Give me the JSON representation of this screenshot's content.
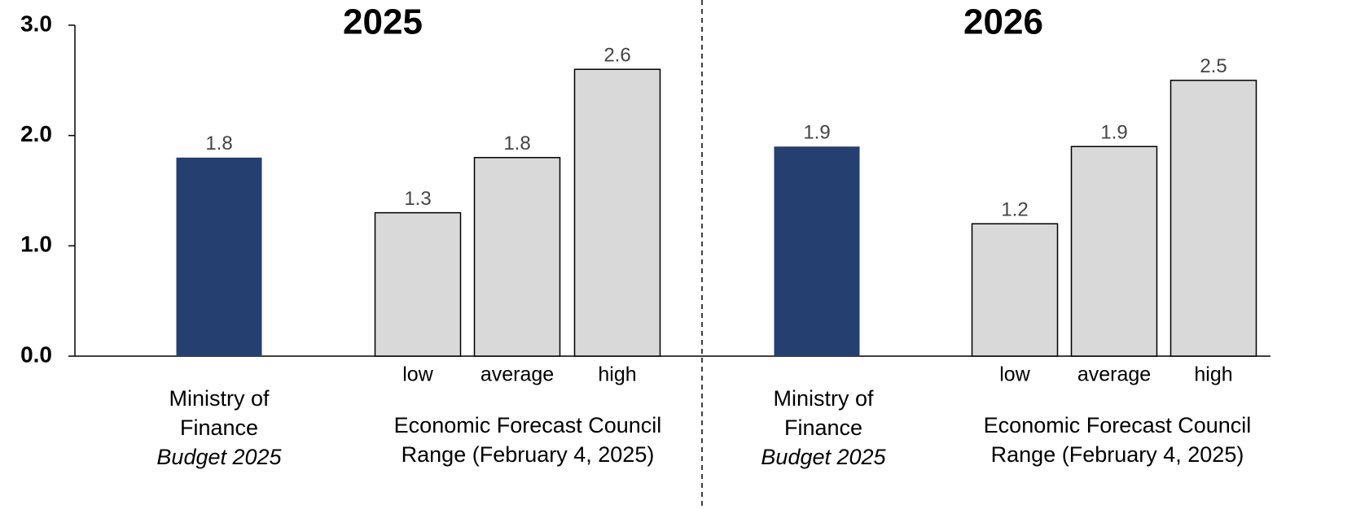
{
  "chart_data": {
    "type": "bar",
    "ylim": [
      0,
      3
    ],
    "yticks": [
      {
        "value": 0,
        "label": "0.0"
      },
      {
        "value": 1,
        "label": "1.0"
      },
      {
        "value": 2,
        "label": "2.0"
      },
      {
        "value": 3,
        "label": "3.0"
      }
    ],
    "group_labels": [
      {
        "lines": [
          "Ministry of",
          "Finance"
        ],
        "italic": "Budget 2025"
      },
      {
        "lines": [
          "Economic Forecast Council",
          "Range (February 4, 2025)"
        ]
      }
    ],
    "panels": [
      {
        "title": "2025",
        "categories": [
          null,
          "low",
          "average",
          "high"
        ],
        "values": [
          1.8,
          1.3,
          1.8,
          2.6
        ],
        "colors": [
          "#243f70",
          "#d9d9d9",
          "#d9d9d9",
          "#d9d9d9"
        ]
      },
      {
        "title": "2026",
        "categories": [
          null,
          "low",
          "average",
          "high"
        ],
        "values": [
          1.9,
          1.2,
          1.9,
          2.5
        ],
        "colors": [
          "#243f70",
          "#d9d9d9",
          "#d9d9d9",
          "#d9d9d9"
        ]
      }
    ]
  }
}
